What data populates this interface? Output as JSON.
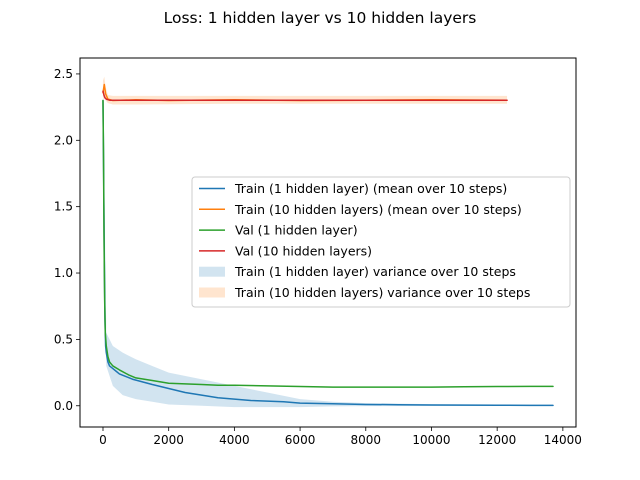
{
  "chart_data": {
    "type": "line",
    "title": "Loss: 1 hidden layer vs 10 hidden layers",
    "xlabel": "",
    "ylabel": "",
    "xlim": [
      -700,
      14400
    ],
    "ylim": [
      -0.16,
      2.62
    ],
    "xticks": [
      0,
      2000,
      4000,
      6000,
      8000,
      10000,
      12000,
      14000
    ],
    "xtick_labels": [
      "0",
      "2000",
      "4000",
      "6000",
      "8000",
      "10000",
      "12000",
      "14000"
    ],
    "yticks": [
      0.0,
      0.5,
      1.0,
      1.5,
      2.0,
      2.5
    ],
    "ytick_labels": [
      "0.0",
      "0.5",
      "1.0",
      "1.5",
      "2.0",
      "2.5"
    ],
    "grid": false,
    "legend_position": "center-right",
    "series": [
      {
        "name": "Train (1 hidden layer) (mean over 10 steps)",
        "kind": "line",
        "color": "#1f77b4",
        "x": [
          0,
          20,
          40,
          60,
          80,
          100,
          150,
          200,
          300,
          400,
          500,
          700,
          900,
          1200,
          1500,
          2000,
          2500,
          3000,
          3500,
          4000,
          4500,
          5000,
          5500,
          6000,
          7000,
          8000,
          9000,
          10000,
          11000,
          12000,
          13000,
          13700
        ],
        "y": [
          2.3,
          1.75,
          1.1,
          0.65,
          0.45,
          0.4,
          0.33,
          0.3,
          0.28,
          0.26,
          0.24,
          0.22,
          0.2,
          0.18,
          0.16,
          0.13,
          0.1,
          0.08,
          0.06,
          0.05,
          0.04,
          0.035,
          0.03,
          0.02,
          0.015,
          0.01,
          0.008,
          0.006,
          0.005,
          0.004,
          0.003,
          0.003
        ]
      },
      {
        "name": "Train (10 hidden layers) (mean over 10 steps)",
        "kind": "line",
        "color": "#ff7f0e",
        "x": [
          0,
          40,
          80,
          150,
          300,
          1000,
          2000,
          4000,
          6000,
          8000,
          10000,
          12300
        ],
        "y": [
          2.36,
          2.42,
          2.35,
          2.31,
          2.3,
          2.305,
          2.3,
          2.305,
          2.3,
          2.302,
          2.305,
          2.302
        ]
      },
      {
        "name": "Val (1 hidden layer)",
        "kind": "line",
        "color": "#2ca02c",
        "x": [
          0,
          15,
          30,
          50,
          70,
          100,
          150,
          200,
          300,
          500,
          800,
          1000,
          1500,
          2000,
          2500,
          3000,
          3500,
          4000,
          5000,
          6000,
          7000,
          8000,
          9000,
          10000,
          11000,
          12000,
          13000,
          13700
        ],
        "y": [
          2.3,
          1.9,
          1.3,
          0.8,
          0.55,
          0.45,
          0.37,
          0.33,
          0.3,
          0.27,
          0.23,
          0.21,
          0.19,
          0.17,
          0.165,
          0.16,
          0.155,
          0.155,
          0.15,
          0.145,
          0.14,
          0.14,
          0.14,
          0.14,
          0.143,
          0.145,
          0.146,
          0.146
        ]
      },
      {
        "name": "Val (10 hidden layers)",
        "kind": "line",
        "color": "#d62728",
        "x": [
          0,
          30,
          60,
          100,
          200,
          500,
          1000,
          2000,
          4000,
          6000,
          8000,
          10000,
          12300
        ],
        "y": [
          2.37,
          2.34,
          2.32,
          2.31,
          2.302,
          2.302,
          2.302,
          2.302,
          2.302,
          2.302,
          2.302,
          2.302,
          2.302
        ]
      },
      {
        "name": "Train (1 hidden layer) variance over 10 steps",
        "kind": "band",
        "color": "#1f77b4",
        "x": [
          0,
          100,
          300,
          600,
          1000,
          1500,
          2000,
          3000,
          4000,
          5000,
          6000,
          7000,
          8000,
          10000,
          13700
        ],
        "lower": [
          2.2,
          0.3,
          0.15,
          0.08,
          0.05,
          0.03,
          0.01,
          0.0,
          -0.01,
          -0.01,
          -0.01,
          -0.005,
          -0.003,
          -0.002,
          -0.002
        ],
        "upper": [
          2.42,
          0.55,
          0.45,
          0.4,
          0.35,
          0.3,
          0.25,
          0.2,
          0.15,
          0.1,
          0.05,
          0.03,
          0.02,
          0.012,
          0.008
        ]
      },
      {
        "name": "Train (10 hidden layers) variance over 10 steps",
        "kind": "band",
        "color": "#ff7f0e",
        "x": [
          0,
          40,
          80,
          150,
          300,
          1000,
          4000,
          8000,
          12300
        ],
        "lower": [
          2.3,
          2.34,
          2.3,
          2.28,
          2.27,
          2.27,
          2.275,
          2.275,
          2.275
        ],
        "upper": [
          2.45,
          2.48,
          2.4,
          2.34,
          2.335,
          2.335,
          2.335,
          2.335,
          2.335
        ]
      }
    ],
    "legend": [
      {
        "label": "Train (1 hidden layer) (mean over 10 steps)",
        "kind": "line",
        "color": "#1f77b4"
      },
      {
        "label": "Train (10 hidden layers) (mean over 10 steps)",
        "kind": "line",
        "color": "#ff7f0e"
      },
      {
        "label": "Val (1 hidden layer)",
        "kind": "line",
        "color": "#2ca02c"
      },
      {
        "label": "Val (10 hidden layers)",
        "kind": "line",
        "color": "#d62728"
      },
      {
        "label": "Train (1 hidden layer) variance over 10 steps",
        "kind": "patch",
        "color": "#1f77b4"
      },
      {
        "label": "Train (10 hidden layers) variance over 10 steps",
        "kind": "patch",
        "color": "#ff7f0e"
      }
    ]
  }
}
